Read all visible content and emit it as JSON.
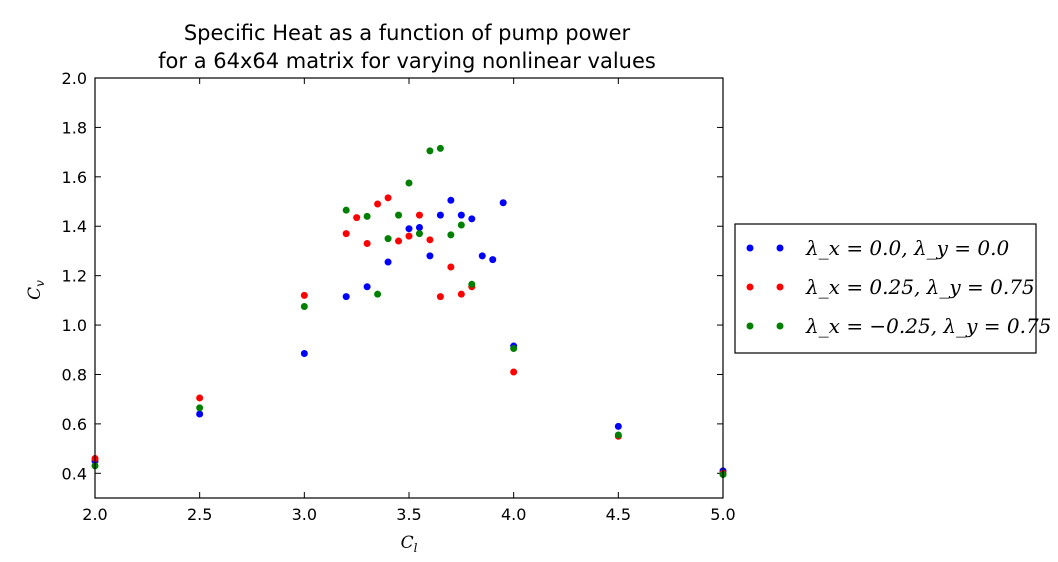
{
  "chart_data": {
    "type": "scatter",
    "title": [
      "Specific Heat as a function of pump power",
      "for a 64x64 matrix for varying nonlinear values"
    ],
    "xlabel": "C_l",
    "ylabel": "C_v",
    "xlim": [
      2.0,
      5.0
    ],
    "ylim": [
      0.3,
      2.0
    ],
    "xticks": [
      "2.0",
      "2.5",
      "3.0",
      "3.5",
      "4.0",
      "4.5",
      "5.0"
    ],
    "yticks": [
      "0.4",
      "0.6",
      "0.8",
      "1.0",
      "1.2",
      "1.4",
      "1.6",
      "1.8",
      "2.0"
    ],
    "grid": false,
    "legend_position": "outside-right",
    "series": [
      {
        "name": "λ_x = 0.0, λ_y = 0.0",
        "color": "#0000ff",
        "points": [
          [
            2.0,
            0.45
          ],
          [
            2.5,
            0.64
          ],
          [
            3.0,
            0.885
          ],
          [
            3.2,
            1.115
          ],
          [
            3.3,
            1.155
          ],
          [
            3.4,
            1.255
          ],
          [
            3.5,
            1.39
          ],
          [
            3.55,
            1.395
          ],
          [
            3.6,
            1.28
          ],
          [
            3.65,
            1.445
          ],
          [
            3.7,
            1.505
          ],
          [
            3.75,
            1.445
          ],
          [
            3.8,
            1.43
          ],
          [
            3.85,
            1.28
          ],
          [
            3.9,
            1.265
          ],
          [
            3.95,
            1.495
          ],
          [
            4.0,
            0.915
          ],
          [
            4.5,
            0.59
          ],
          [
            5.0,
            0.41
          ]
        ]
      },
      {
        "name": "λ_x = 0.25, λ_y = 0.75",
        "color": "#ff0000",
        "points": [
          [
            2.0,
            0.46
          ],
          [
            2.5,
            0.705
          ],
          [
            3.0,
            1.12
          ],
          [
            3.2,
            1.37
          ],
          [
            3.25,
            1.435
          ],
          [
            3.3,
            1.33
          ],
          [
            3.35,
            1.49
          ],
          [
            3.4,
            1.515
          ],
          [
            3.45,
            1.34
          ],
          [
            3.5,
            1.36
          ],
          [
            3.55,
            1.445
          ],
          [
            3.6,
            1.345
          ],
          [
            3.65,
            1.115
          ],
          [
            3.7,
            1.235
          ],
          [
            3.75,
            1.125
          ],
          [
            3.8,
            1.155
          ],
          [
            4.0,
            0.81
          ],
          [
            4.5,
            0.55
          ],
          [
            5.0,
            0.4
          ]
        ]
      },
      {
        "name": "λ_x = −0.25, λ_y = 0.75",
        "color": "#008000",
        "points": [
          [
            2.0,
            0.43
          ],
          [
            2.5,
            0.665
          ],
          [
            3.0,
            1.075
          ],
          [
            3.2,
            1.465
          ],
          [
            3.3,
            1.44
          ],
          [
            3.35,
            1.125
          ],
          [
            3.4,
            1.35
          ],
          [
            3.45,
            1.445
          ],
          [
            3.5,
            1.575
          ],
          [
            3.55,
            1.37
          ],
          [
            3.6,
            1.705
          ],
          [
            3.65,
            1.715
          ],
          [
            3.7,
            1.365
          ],
          [
            3.75,
            1.405
          ],
          [
            3.8,
            1.165
          ],
          [
            4.0,
            0.905
          ],
          [
            4.5,
            0.555
          ],
          [
            5.0,
            0.395
          ]
        ]
      }
    ]
  }
}
